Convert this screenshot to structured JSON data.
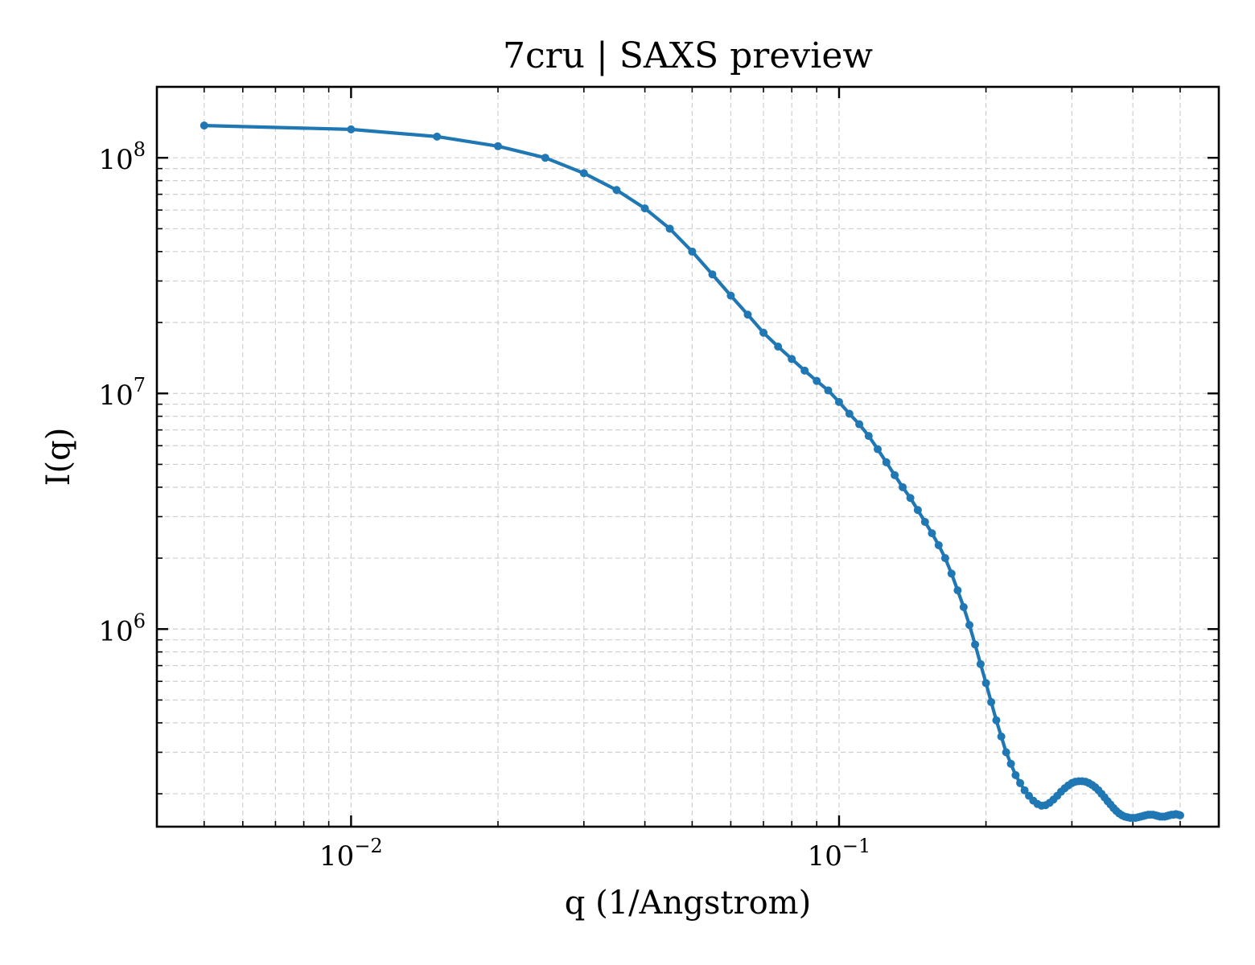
{
  "chart_data": {
    "type": "line",
    "title": "7cru | SAXS preview",
    "xlabel": "q (1/Angstrom)",
    "ylabel": "I(q)",
    "xscale": "log",
    "yscale": "log",
    "xlim": [
      0.004,
      0.6
    ],
    "ylim": [
      145000,
      200000000
    ],
    "grid": true,
    "legend": "none",
    "x_ticks": [
      {
        "value": 0.01,
        "base": "10",
        "exp": "−2"
      },
      {
        "value": 0.1,
        "base": "10",
        "exp": "−1"
      }
    ],
    "y_ticks": [
      {
        "value": 1000000,
        "base": "10",
        "exp": "6"
      },
      {
        "value": 10000000,
        "base": "10",
        "exp": "7"
      },
      {
        "value": 100000000,
        "base": "10",
        "exp": "8"
      }
    ],
    "colors": {
      "series": "#1f77b4"
    },
    "series": [
      {
        "marker": "circle",
        "x": [
          0.005,
          0.01,
          0.015,
          0.02,
          0.025,
          0.03,
          0.035,
          0.04,
          0.045,
          0.05,
          0.055,
          0.06,
          0.065,
          0.07,
          0.075,
          0.08,
          0.085,
          0.09,
          0.095,
          0.1,
          0.105,
          0.11,
          0.115,
          0.12,
          0.125,
          0.13,
          0.135,
          0.14,
          0.145,
          0.15,
          0.155,
          0.16,
          0.165,
          0.17,
          0.175,
          0.18,
          0.185,
          0.19,
          0.195,
          0.2,
          0.205,
          0.21,
          0.215,
          0.22,
          0.225,
          0.23,
          0.235,
          0.24,
          0.245,
          0.25,
          0.255,
          0.26,
          0.265,
          0.27,
          0.275,
          0.28,
          0.285,
          0.29,
          0.295,
          0.3,
          0.305,
          0.31,
          0.315,
          0.32,
          0.325,
          0.33,
          0.335,
          0.34,
          0.345,
          0.35,
          0.355,
          0.36,
          0.365,
          0.37,
          0.375,
          0.38,
          0.385,
          0.39,
          0.395,
          0.4,
          0.405,
          0.41,
          0.415,
          0.42,
          0.425,
          0.43,
          0.435,
          0.44,
          0.445,
          0.45,
          0.455,
          0.46,
          0.465,
          0.47,
          0.475,
          0.48,
          0.485,
          0.49,
          0.495,
          0.5
        ],
        "y": [
          137000000,
          132000000,
          123000000,
          112000000,
          100000000,
          86000000,
          73000000,
          61000000,
          50000000,
          40000000,
          32000000,
          26000000,
          21600000,
          18100000,
          15800000,
          14000000,
          12500000,
          11300000,
          10300000,
          9200000,
          8200000,
          7400000,
          6600000,
          5800000,
          5100000,
          4500000,
          4000000,
          3600000,
          3200000,
          2850000,
          2550000,
          2270000,
          2000000,
          1720000,
          1460000,
          1240000,
          1040000,
          860000,
          710000,
          590000,
          490000,
          410000,
          350000,
          300000,
          268000,
          240000,
          222000,
          207000,
          196000,
          187000,
          181000,
          178000,
          179000,
          183000,
          189000,
          196000,
          204000,
          211000,
          217000,
          222000,
          225000,
          226000,
          226000,
          225000,
          222000,
          218000,
          213000,
          207000,
          200000,
          193000,
          186000,
          180000,
          174000,
          169000,
          165000,
          162000,
          160000,
          159000,
          158000,
          158000,
          158000,
          159000,
          160000,
          161000,
          162000,
          163000,
          163000,
          163000,
          162000,
          161000,
          160000,
          160000,
          160000,
          161000,
          162000,
          163000,
          163000,
          164000,
          163000,
          162000
        ]
      }
    ]
  }
}
